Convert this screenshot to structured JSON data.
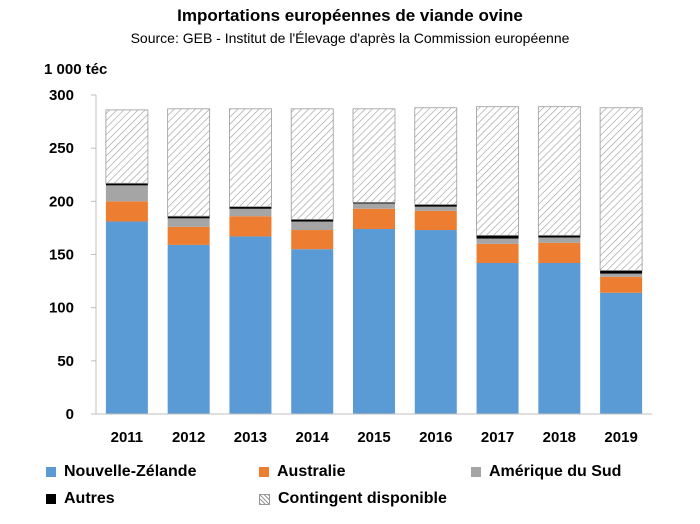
{
  "chart_data": {
    "type": "bar",
    "stacked": true,
    "title": "Importations européennes de viande ovine",
    "subtitle": "Source: GEB - Institut de l'Élevage d'après la Commission européenne",
    "ylabel": "1 000 téc",
    "xlabel": "",
    "ylim": [
      0,
      300
    ],
    "yticks": [
      0,
      50,
      100,
      150,
      200,
      250,
      300
    ],
    "categories": [
      "2011",
      "2012",
      "2013",
      "2014",
      "2015",
      "2016",
      "2017",
      "2018",
      "2019"
    ],
    "series": [
      {
        "name": "Nouvelle-Zélande",
        "color": "#5b9bd5",
        "pattern": "solid",
        "values": [
          181,
          159,
          167,
          155,
          174,
          173,
          142,
          142,
          114
        ]
      },
      {
        "name": "Australie",
        "color": "#ed7d31",
        "pattern": "solid",
        "values": [
          19,
          17,
          19,
          18,
          19,
          18,
          18,
          19,
          15
        ]
      },
      {
        "name": "Amérique du Sud",
        "color": "#a5a5a5",
        "pattern": "solid",
        "values": [
          15,
          8,
          7,
          8,
          5,
          4,
          5,
          5,
          3
        ]
      },
      {
        "name": "Autres",
        "color": "#000000",
        "pattern": "solid",
        "values": [
          2,
          2,
          2,
          2,
          1,
          2,
          3,
          2,
          3
        ]
      },
      {
        "name": "Contingent disponible",
        "color": "#ffffff",
        "pattern": "hatch",
        "values": [
          69,
          101,
          92,
          104,
          88,
          91,
          121,
          121,
          153
        ]
      }
    ],
    "grid": false,
    "legend": "bottom"
  }
}
